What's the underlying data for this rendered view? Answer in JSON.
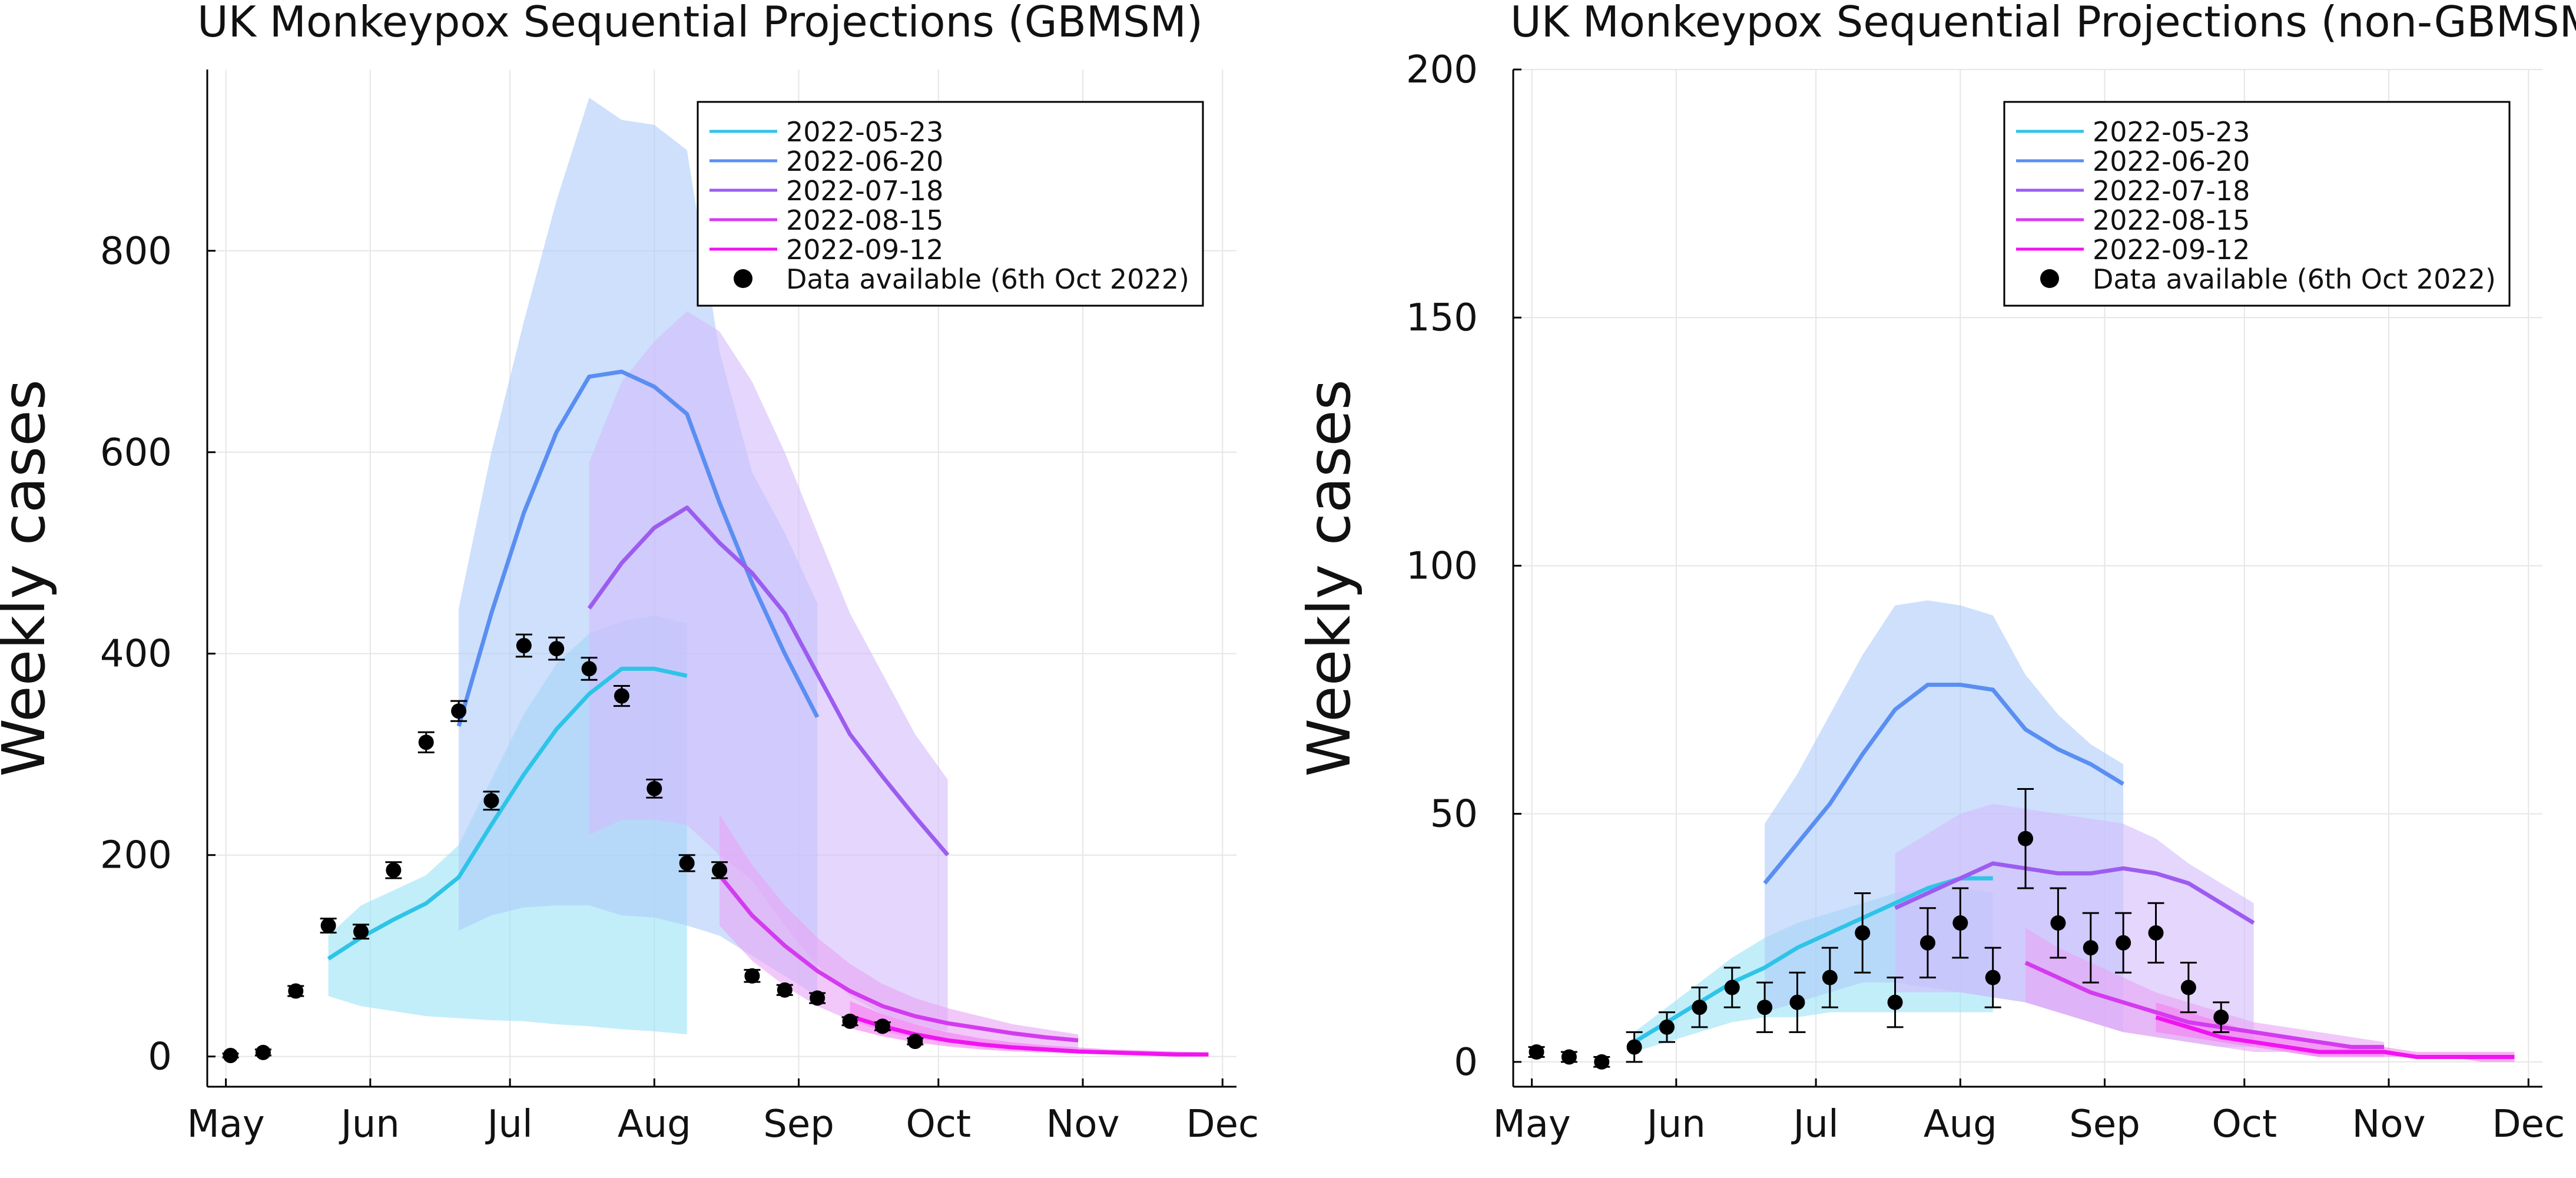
{
  "chart_data": [
    {
      "type": "line",
      "title": "UK Monkeypox Sequential Projections (GBMSM)",
      "xlabel": "",
      "ylabel": "Weekly cases",
      "x_ticks": [
        "2022-05-01",
        "2022-06-01",
        "2022-07-01",
        "2022-08-01",
        "2022-09-01",
        "2022-10-01",
        "2022-11-01",
        "2022-12-01"
      ],
      "x_tick_labels": [
        "May",
        "Jun",
        "Jul",
        "Aug",
        "Sep",
        "Oct",
        "Nov",
        "Dec"
      ],
      "xlim": [
        "2022-04-27",
        "2022-12-04"
      ],
      "y_ticks": [
        0,
        200,
        400,
        600,
        800
      ],
      "ylim": [
        -30,
        980
      ],
      "grid": true,
      "legend_position": "top-right",
      "series": [
        {
          "name": "2022-05-23",
          "color": "#2ec4e8",
          "band_color": "#99e3f6",
          "x": [
            "2022-05-23",
            "2022-05-30",
            "2022-06-06",
            "2022-06-13",
            "2022-06-20",
            "2022-06-27",
            "2022-07-04",
            "2022-07-11",
            "2022-07-18",
            "2022-07-25",
            "2022-08-01",
            "2022-08-08"
          ],
          "y": [
            97,
            118,
            136,
            152,
            178,
            230,
            280,
            325,
            360,
            385,
            385,
            378
          ],
          "lower": [
            60,
            50,
            45,
            40,
            38,
            36,
            35,
            32,
            30,
            27,
            25,
            22
          ],
          "upper": [
            120,
            150,
            165,
            180,
            210,
            275,
            340,
            390,
            420,
            432,
            438,
            430
          ]
        },
        {
          "name": "2022-06-20",
          "color": "#5a8ef2",
          "band_color": "#aecbfa",
          "x": [
            "2022-06-20",
            "2022-06-27",
            "2022-07-04",
            "2022-07-11",
            "2022-07-18",
            "2022-07-25",
            "2022-08-01",
            "2022-08-08",
            "2022-08-15",
            "2022-08-22",
            "2022-08-29",
            "2022-09-05"
          ],
          "y": [
            328,
            440,
            540,
            620,
            675,
            680,
            665,
            638,
            550,
            470,
            400,
            337
          ],
          "lower": [
            125,
            140,
            148,
            150,
            150,
            140,
            138,
            130,
            120,
            100,
            80,
            60
          ],
          "upper": [
            445,
            600,
            730,
            850,
            952,
            930,
            925,
            900,
            700,
            580,
            520,
            450
          ]
        },
        {
          "name": "2022-07-18",
          "color": "#9c5cf0",
          "band_color": "#d4bbfb",
          "x": [
            "2022-07-18",
            "2022-07-25",
            "2022-08-01",
            "2022-08-08",
            "2022-08-15",
            "2022-08-22",
            "2022-08-29",
            "2022-09-05",
            "2022-09-12",
            "2022-09-19",
            "2022-09-26",
            "2022-10-03"
          ],
          "y": [
            445,
            490,
            525,
            545,
            510,
            480,
            440,
            380,
            320,
            278,
            238,
            200
          ],
          "lower": [
            220,
            235,
            235,
            230,
            200,
            175,
            130,
            90,
            60,
            42,
            32,
            25
          ],
          "upper": [
            590,
            670,
            710,
            740,
            720,
            670,
            600,
            520,
            440,
            380,
            320,
            275
          ]
        },
        {
          "name": "2022-08-15",
          "color": "#d33bef",
          "band_color": "#e7a3f5",
          "x": [
            "2022-08-15",
            "2022-08-22",
            "2022-08-29",
            "2022-09-05",
            "2022-09-12",
            "2022-09-19",
            "2022-09-26",
            "2022-10-03",
            "2022-10-10",
            "2022-10-17",
            "2022-10-24",
            "2022-10-31"
          ],
          "y": [
            180,
            140,
            110,
            85,
            65,
            50,
            40,
            33,
            28,
            23,
            19,
            16
          ],
          "lower": [
            130,
            95,
            70,
            50,
            36,
            25,
            18,
            14,
            10,
            7,
            5,
            4
          ],
          "upper": [
            240,
            190,
            150,
            118,
            92,
            72,
            58,
            48,
            40,
            32,
            27,
            22
          ]
        },
        {
          "name": "2022-09-12",
          "color": "#f014f0",
          "band_color": "#f57df0",
          "x": [
            "2022-09-12",
            "2022-09-19",
            "2022-09-26",
            "2022-10-03",
            "2022-10-10",
            "2022-10-17",
            "2022-10-24",
            "2022-10-31",
            "2022-11-07",
            "2022-11-14",
            "2022-11-21",
            "2022-11-28"
          ],
          "y": [
            40,
            30,
            22,
            16,
            12,
            9,
            7,
            5,
            4,
            3,
            2,
            2
          ],
          "lower": [
            28,
            20,
            14,
            10,
            7,
            5,
            4,
            3,
            2,
            1,
            1,
            1
          ],
          "upper": [
            55,
            42,
            32,
            24,
            18,
            14,
            11,
            9,
            7,
            6,
            5,
            4
          ]
        }
      ],
      "observed": {
        "name": "Data available (6th Oct 2022)",
        "color": "#000000",
        "x": [
          "2022-05-02",
          "2022-05-09",
          "2022-05-16",
          "2022-05-23",
          "2022-05-30",
          "2022-06-06",
          "2022-06-13",
          "2022-06-20",
          "2022-06-27",
          "2022-07-04",
          "2022-07-11",
          "2022-07-18",
          "2022-07-25",
          "2022-08-01",
          "2022-08-08",
          "2022-08-15",
          "2022-08-22",
          "2022-08-29",
          "2022-09-05",
          "2022-09-12",
          "2022-09-19",
          "2022-09-26"
        ],
        "y": [
          1,
          4,
          65,
          130,
          124,
          185,
          312,
          343,
          254,
          408,
          405,
          385,
          358,
          266,
          192,
          185,
          80,
          66,
          58,
          35,
          30,
          15
        ],
        "err": [
          2,
          3,
          5,
          7,
          7,
          8,
          10,
          10,
          9,
          11,
          11,
          11,
          10,
          9,
          8,
          8,
          6,
          5,
          5,
          4,
          4,
          3
        ]
      }
    },
    {
      "type": "line",
      "title": "UK Monkeypox Sequential Projections (non-GBMSM)",
      "xlabel": "",
      "ylabel": "Weekly cases",
      "x_ticks": [
        "2022-05-01",
        "2022-06-01",
        "2022-07-01",
        "2022-08-01",
        "2022-09-01",
        "2022-10-01",
        "2022-11-01",
        "2022-12-01"
      ],
      "x_tick_labels": [
        "May",
        "Jun",
        "Jul",
        "Aug",
        "Sep",
        "Oct",
        "Nov",
        "Dec"
      ],
      "xlim": [
        "2022-04-27",
        "2022-12-04"
      ],
      "y_ticks": [
        0,
        50,
        100,
        150,
        200
      ],
      "ylim": [
        -5,
        200
      ],
      "grid": true,
      "legend_position": "top-right",
      "series": [
        {
          "name": "2022-05-23",
          "color": "#2ec4e8",
          "band_color": "#99e3f6",
          "x": [
            "2022-05-23",
            "2022-05-30",
            "2022-06-06",
            "2022-06-13",
            "2022-06-20",
            "2022-06-27",
            "2022-07-04",
            "2022-07-11",
            "2022-07-18",
            "2022-07-25",
            "2022-08-01",
            "2022-08-08"
          ],
          "y": [
            4,
            8,
            12,
            16,
            19,
            23,
            26,
            29,
            32,
            35,
            37,
            37
          ],
          "lower": [
            2,
            4,
            6,
            8,
            9,
            9,
            10,
            10,
            10,
            10,
            10,
            10
          ],
          "upper": [
            6,
            11,
            16,
            21,
            25,
            28,
            30,
            32,
            34,
            35,
            35,
            34
          ]
        },
        {
          "name": "2022-06-20",
          "color": "#5a8ef2",
          "band_color": "#aecbfa",
          "x": [
            "2022-06-20",
            "2022-06-27",
            "2022-07-04",
            "2022-07-11",
            "2022-07-18",
            "2022-07-25",
            "2022-08-01",
            "2022-08-08",
            "2022-08-15",
            "2022-08-22",
            "2022-08-29",
            "2022-09-05"
          ],
          "y": [
            36,
            44,
            52,
            62,
            71,
            76,
            76,
            75,
            67,
            63,
            60,
            56
          ],
          "lower": [
            10,
            12,
            14,
            16,
            16,
            15,
            14,
            13,
            12,
            10,
            8,
            6
          ],
          "upper": [
            48,
            58,
            70,
            82,
            92,
            93,
            92,
            90,
            78,
            70,
            64,
            60
          ]
        },
        {
          "name": "2022-07-18",
          "color": "#9c5cf0",
          "band_color": "#d4bbfb",
          "x": [
            "2022-07-18",
            "2022-07-25",
            "2022-08-01",
            "2022-08-08",
            "2022-08-15",
            "2022-08-22",
            "2022-08-29",
            "2022-09-05",
            "2022-09-12",
            "2022-09-19",
            "2022-09-26",
            "2022-10-03"
          ],
          "y": [
            31,
            34,
            37,
            40,
            39,
            38,
            38,
            39,
            38,
            36,
            32,
            28
          ],
          "lower": [
            14,
            14,
            14,
            13,
            12,
            10,
            8,
            6,
            5,
            4,
            3,
            3
          ],
          "upper": [
            42,
            46,
            50,
            52,
            51,
            50,
            49,
            48,
            45,
            40,
            36,
            32
          ]
        },
        {
          "name": "2022-08-15",
          "color": "#d33bef",
          "band_color": "#e7a3f5",
          "x": [
            "2022-08-15",
            "2022-08-22",
            "2022-08-29",
            "2022-09-05",
            "2022-09-12",
            "2022-09-19",
            "2022-09-26",
            "2022-10-03",
            "2022-10-10",
            "2022-10-17",
            "2022-10-24",
            "2022-10-31"
          ],
          "y": [
            20,
            17,
            14,
            12,
            10,
            8,
            7,
            6,
            5,
            4,
            3,
            3
          ],
          "lower": [
            12,
            10,
            8,
            6,
            5,
            4,
            3,
            2,
            2,
            1,
            1,
            1
          ],
          "upper": [
            27,
            23,
            20,
            17,
            14,
            12,
            10,
            8,
            7,
            6,
            5,
            4
          ]
        },
        {
          "name": "2022-09-12",
          "color": "#f014f0",
          "band_color": "#f57df0",
          "x": [
            "2022-09-12",
            "2022-09-19",
            "2022-09-26",
            "2022-10-03",
            "2022-10-10",
            "2022-10-17",
            "2022-10-24",
            "2022-10-31",
            "2022-11-07",
            "2022-11-14",
            "2022-11-21",
            "2022-11-28"
          ],
          "y": [
            9,
            7,
            5,
            4,
            3,
            2,
            2,
            2,
            1,
            1,
            1,
            1
          ],
          "lower": [
            6,
            5,
            4,
            3,
            2,
            1,
            1,
            1,
            1,
            1,
            0,
            0
          ],
          "upper": [
            12,
            10,
            8,
            6,
            5,
            4,
            3,
            3,
            2,
            2,
            2,
            2
          ]
        }
      ],
      "observed": {
        "name": "Data available (6th Oct 2022)",
        "color": "#000000",
        "x": [
          "2022-05-02",
          "2022-05-09",
          "2022-05-16",
          "2022-05-23",
          "2022-05-30",
          "2022-06-06",
          "2022-06-13",
          "2022-06-20",
          "2022-06-27",
          "2022-07-04",
          "2022-07-11",
          "2022-07-18",
          "2022-07-25",
          "2022-08-01",
          "2022-08-08",
          "2022-08-15",
          "2022-08-22",
          "2022-08-29",
          "2022-09-05",
          "2022-09-12",
          "2022-09-19",
          "2022-09-26"
        ],
        "y": [
          2,
          1,
          0,
          3,
          7,
          11,
          15,
          11,
          12,
          17,
          26,
          12,
          24,
          28,
          17,
          45,
          28,
          23,
          24,
          26,
          15,
          9
        ],
        "err": [
          1,
          1,
          1,
          3,
          3,
          4,
          4,
          5,
          6,
          6,
          8,
          5,
          7,
          7,
          6,
          10,
          7,
          7,
          6,
          6,
          5,
          3
        ]
      }
    }
  ]
}
